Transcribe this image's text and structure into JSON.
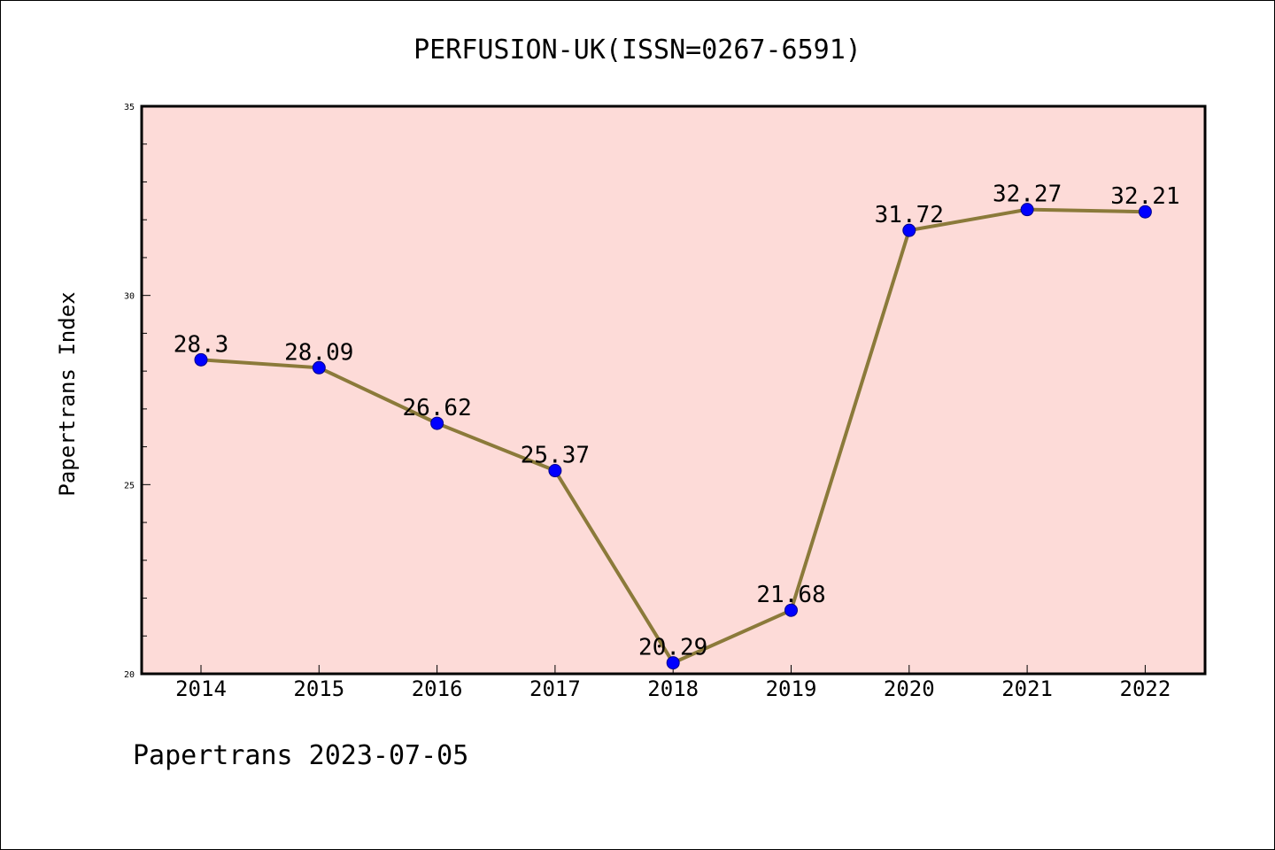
{
  "title": "PERFUSION-UK(ISSN=0267-6591)",
  "footer": "Papertrans 2023-07-05",
  "colors": {
    "plot_background": "#fddbd8",
    "line": "#8b7a3a",
    "marker": "#0000ff",
    "marker_edge": "#00008b",
    "axis": "#000000"
  },
  "chart_data": {
    "type": "line",
    "title": "PERFUSION-UK(ISSN=0267-6591)",
    "xlabel": "",
    "ylabel": "Papertrans Index",
    "categories": [
      "2014",
      "2015",
      "2016",
      "2017",
      "2018",
      "2019",
      "2020",
      "2021",
      "2022"
    ],
    "series": [
      {
        "values": [
          28.3,
          28.09,
          26.62,
          25.37,
          20.29,
          21.68,
          31.72,
          32.27,
          32.21
        ],
        "labels": [
          "28.3",
          "28.09",
          "26.62",
          "25.37",
          "20.29",
          "21.68",
          "31.72",
          "32.27",
          "32.21"
        ]
      }
    ],
    "ylim": [
      20,
      35
    ],
    "yticks": [
      20,
      25,
      30,
      35
    ],
    "yticks_minor_step": 1,
    "grid": false,
    "legend": "none"
  }
}
